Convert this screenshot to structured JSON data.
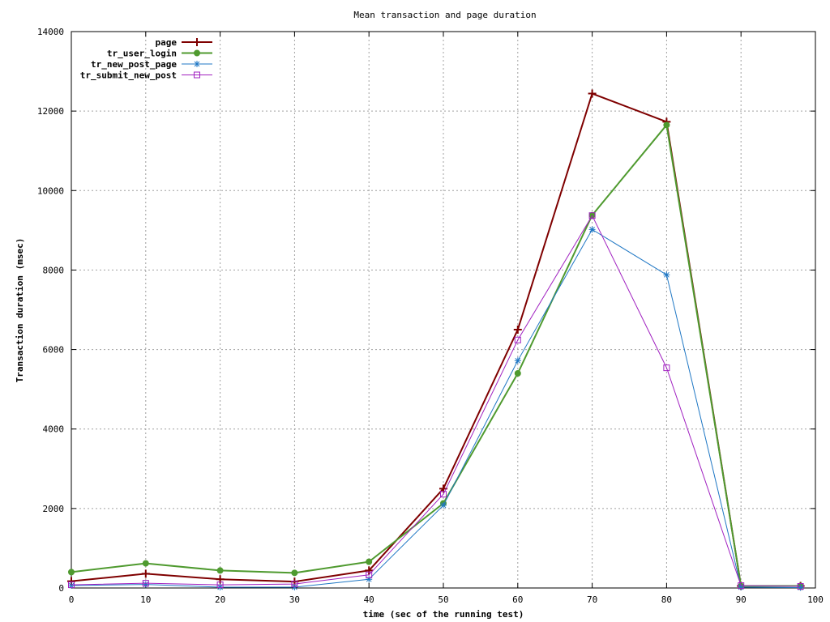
{
  "chart_data": {
    "type": "line",
    "title": "Mean transaction and page duration",
    "xlabel": "time (sec of the running test)",
    "ylabel": "Transaction duration (msec)",
    "xlim": [
      0,
      100
    ],
    "ylim": [
      0,
      14000
    ],
    "x_ticks": [
      0,
      10,
      20,
      30,
      40,
      50,
      60,
      70,
      80,
      90,
      100
    ],
    "y_ticks": [
      0,
      2000,
      4000,
      6000,
      8000,
      10000,
      12000,
      14000
    ],
    "x_tick_labels": [
      "0",
      "10",
      "20",
      "30",
      "40",
      "50",
      "60",
      "70",
      "80",
      "90",
      "100"
    ],
    "y_tick_labels": [
      "0",
      "2000",
      "4000",
      "6000",
      "8000",
      "10000",
      "12000",
      "14000"
    ],
    "grid": true,
    "legend_position": "top-left",
    "series": [
      {
        "name": "page",
        "color": "#7f0000",
        "marker": "plus",
        "x": [
          0,
          10,
          20,
          30,
          40,
          50,
          60,
          70,
          80,
          90,
          98
        ],
        "y": [
          170,
          360,
          220,
          160,
          440,
          2500,
          6500,
          12440,
          11730,
          50,
          50
        ]
      },
      {
        "name": "tr_user_login",
        "color": "#4f9a2f",
        "marker": "circle",
        "x": [
          0,
          10,
          20,
          30,
          40,
          50,
          60,
          70,
          80,
          90,
          98
        ],
        "y": [
          400,
          620,
          440,
          380,
          660,
          2130,
          5400,
          9380,
          11650,
          50,
          50
        ]
      },
      {
        "name": "tr_new_post_page",
        "color": "#1f77c4",
        "marker": "star",
        "x": [
          0,
          10,
          20,
          30,
          40,
          50,
          60,
          70,
          80,
          90,
          98
        ],
        "y": [
          60,
          90,
          20,
          20,
          220,
          2080,
          5720,
          9020,
          7880,
          20,
          10
        ]
      },
      {
        "name": "tr_submit_new_post",
        "color": "#a020c0",
        "marker": "square",
        "x": [
          0,
          10,
          20,
          30,
          40,
          50,
          60,
          70,
          80,
          90,
          98
        ],
        "y": [
          80,
          120,
          80,
          100,
          330,
          2360,
          6240,
          9370,
          5540,
          60,
          40
        ]
      }
    ]
  }
}
